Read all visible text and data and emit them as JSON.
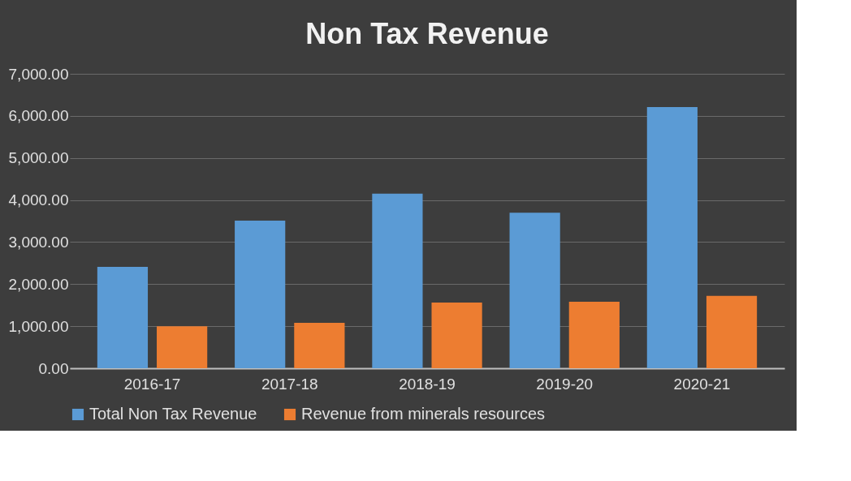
{
  "chart_data": {
    "type": "bar",
    "title": "Non Tax Revenue",
    "categories": [
      "2016-17",
      "2017-18",
      "2018-19",
      "2019-20",
      "2020-21"
    ],
    "series": [
      {
        "name": "Total Non Tax Revenue",
        "color": "#5b9bd5",
        "values": [
          2410,
          3510,
          4150,
          3700,
          6210
        ]
      },
      {
        "name": "Revenue from minerals resources",
        "color": "#ed7d31",
        "values": [
          1000,
          1080,
          1560,
          1580,
          1720
        ]
      }
    ],
    "ylim": [
      0,
      7000
    ],
    "yticks": [
      {
        "value": 0,
        "label": "0.00"
      },
      {
        "value": 1000,
        "label": "1,000.00"
      },
      {
        "value": 2000,
        "label": "2,000.00"
      },
      {
        "value": 3000,
        "label": "3,000.00"
      },
      {
        "value": 4000,
        "label": "4,000.00"
      },
      {
        "value": 5000,
        "label": "5,000.00"
      },
      {
        "value": 6000,
        "label": "6,000.00"
      },
      {
        "value": 7000,
        "label": "7,000.00"
      }
    ],
    "grid": "y",
    "legend": "bottom"
  }
}
